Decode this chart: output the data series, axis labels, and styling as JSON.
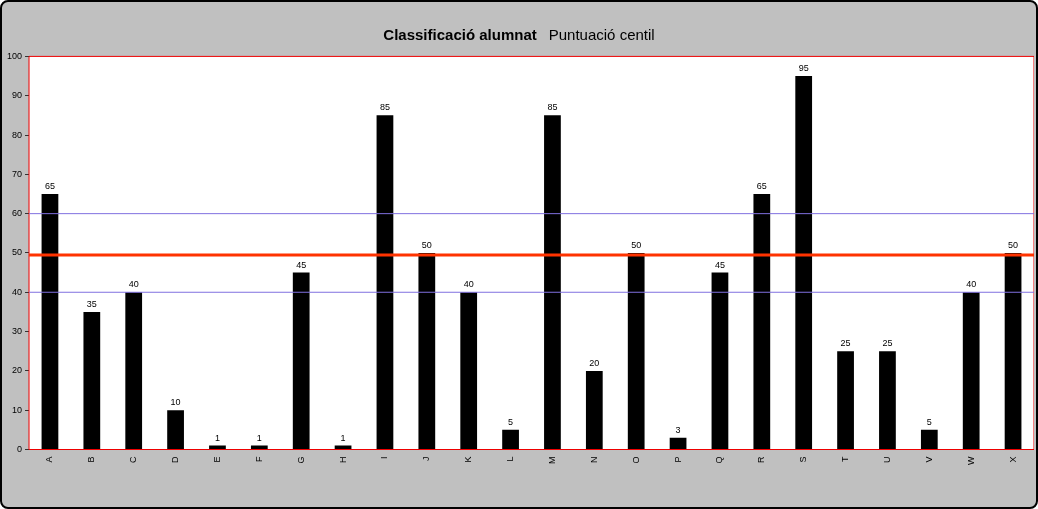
{
  "chart_data": {
    "type": "bar",
    "title": "Classificació alumnat",
    "subtitle": "Puntuació centil",
    "categories": [
      "A",
      "B",
      "C",
      "D",
      "E",
      "F",
      "G",
      "H",
      "I",
      "J",
      "K",
      "L",
      "M",
      "N",
      "O",
      "P",
      "Q",
      "R",
      "S",
      "T",
      "U",
      "V",
      "W",
      "X"
    ],
    "values": [
      65,
      35,
      40,
      10,
      1,
      1,
      45,
      1,
      85,
      50,
      40,
      5,
      85,
      20,
      50,
      3,
      45,
      65,
      95,
      25,
      25,
      5,
      40,
      50
    ],
    "color": "#000000",
    "data_labels": true,
    "ylim": [
      0,
      100
    ],
    "yticks": [
      0,
      10,
      20,
      30,
      40,
      50,
      60,
      70,
      80,
      90,
      100
    ],
    "grid": false,
    "legend": false,
    "ref_lines": [
      {
        "axis": "y",
        "value": 60,
        "color": "#8070e0"
      },
      {
        "axis": "y",
        "value": 49.5,
        "color": "#ff3300"
      },
      {
        "axis": "y",
        "value": 40,
        "color": "#8070e0"
      }
    ]
  }
}
